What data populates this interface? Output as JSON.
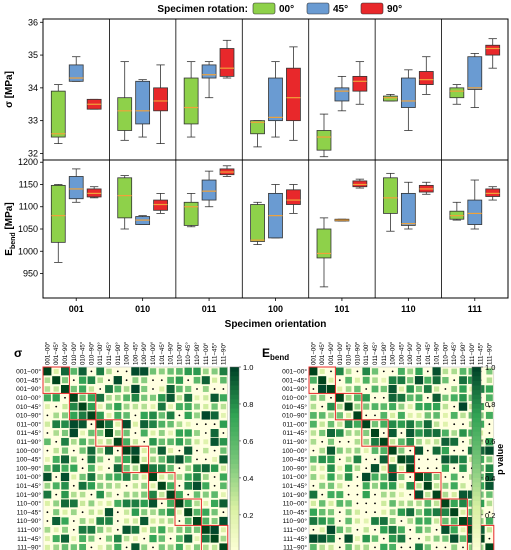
{
  "legend": {
    "title": "Specimen rotation:",
    "items": [
      {
        "label": "00°",
        "color": "#8ed14a"
      },
      {
        "label": "45°",
        "color": "#6a9bd2"
      },
      {
        "label": "90°",
        "color": "#e8282b"
      }
    ]
  },
  "colors": {
    "median": "#f0a23a",
    "box_stroke": "#333333",
    "axis": "#000000",
    "grid": "#dddddd",
    "significance_box": "#e8282b"
  },
  "chart_data": [
    {
      "type": "box",
      "ylabel": "σ [MPa]",
      "ylim": [
        31.8,
        36.1
      ],
      "yticks": [
        32,
        33,
        34,
        35,
        36
      ],
      "categories": [
        "001",
        "010",
        "011",
        "100",
        "101",
        "110",
        "111"
      ],
      "series": [
        {
          "name": "00°",
          "stats": [
            {
              "min": 32.3,
              "q1": 32.5,
              "median": 32.6,
              "q3": 33.9,
              "max": 34.1
            },
            {
              "min": 32.4,
              "q1": 32.7,
              "median": 33.3,
              "q3": 33.7,
              "max": 34.8
            },
            {
              "min": 32.5,
              "q1": 32.9,
              "median": 33.4,
              "q3": 34.3,
              "max": 34.8
            },
            {
              "min": 32.2,
              "q1": 32.6,
              "median": 32.95,
              "q3": 33.0,
              "max": 33.0
            },
            {
              "min": 31.9,
              "q1": 32.1,
              "median": 32.5,
              "q3": 32.7,
              "max": 33.2
            },
            {
              "min": 33.6,
              "q1": 33.6,
              "median": 33.7,
              "q3": 33.75,
              "max": 33.8
            },
            {
              "min": 33.5,
              "q1": 33.7,
              "median": 33.9,
              "q3": 34.0,
              "max": 34.1
            }
          ]
        },
        {
          "name": "45°",
          "stats": [
            {
              "min": 34.2,
              "q1": 34.2,
              "median": 34.3,
              "q3": 34.7,
              "max": 34.95
            },
            {
              "min": 32.5,
              "q1": 32.9,
              "median": 33.3,
              "q3": 34.2,
              "max": 34.25
            },
            {
              "min": 33.7,
              "q1": 34.3,
              "median": 34.4,
              "q3": 34.7,
              "max": 34.8
            },
            {
              "min": 32.5,
              "q1": 33.0,
              "median": 33.1,
              "q3": 34.3,
              "max": 34.8
            },
            {
              "min": 33.3,
              "q1": 33.6,
              "median": 33.9,
              "q3": 34.0,
              "max": 34.35
            },
            {
              "min": 32.7,
              "q1": 33.4,
              "median": 33.6,
              "q3": 34.3,
              "max": 34.55
            },
            {
              "min": 33.4,
              "q1": 33.95,
              "median": 34.0,
              "q3": 34.95,
              "max": 35.05
            }
          ]
        },
        {
          "name": "90°",
          "stats": [
            {
              "min": 33.35,
              "q1": 33.35,
              "median": 33.5,
              "q3": 33.65,
              "max": 33.65
            },
            {
              "min": 32.3,
              "q1": 33.3,
              "median": 33.6,
              "q3": 34.0,
              "max": 34.7
            },
            {
              "min": 34.3,
              "q1": 34.35,
              "median": 34.6,
              "q3": 35.2,
              "max": 35.45
            },
            {
              "min": 32.4,
              "q1": 33.0,
              "median": 33.7,
              "q3": 34.6,
              "max": 35.25
            },
            {
              "min": 33.5,
              "q1": 33.9,
              "median": 34.2,
              "q3": 34.35,
              "max": 34.8
            },
            {
              "min": 33.8,
              "q1": 34.1,
              "median": 34.25,
              "q3": 34.5,
              "max": 34.95
            },
            {
              "min": 34.6,
              "q1": 35.0,
              "median": 35.2,
              "q3": 35.3,
              "max": 35.5
            }
          ]
        }
      ]
    },
    {
      "type": "box",
      "ylabel": "E",
      "ylabel_sub": "bend",
      "ylabel_unit": " [MPa]",
      "xlabel": "Specimen orientation",
      "ylim": [
        895,
        1205
      ],
      "yticks": [
        950,
        1000,
        1050,
        1100,
        1150,
        1200
      ],
      "categories": [
        "001",
        "010",
        "011",
        "100",
        "101",
        "110",
        "111"
      ],
      "series": [
        {
          "name": "00°",
          "stats": [
            {
              "min": 975,
              "q1": 1020,
              "median": 1080,
              "q3": 1148,
              "max": 1150
            },
            {
              "min": 1050,
              "q1": 1075,
              "median": 1125,
              "q3": 1165,
              "max": 1170
            },
            {
              "min": 1055,
              "q1": 1058,
              "median": 1100,
              "q3": 1110,
              "max": 1130
            },
            {
              "min": 1015,
              "q1": 1022,
              "median": 1025,
              "q3": 1105,
              "max": 1110
            },
            {
              "min": 920,
              "q1": 985,
              "median": 995,
              "q3": 1050,
              "max": 1075
            },
            {
              "min": 1045,
              "q1": 1085,
              "median": 1120,
              "q3": 1165,
              "max": 1175
            },
            {
              "min": 1070,
              "q1": 1072,
              "median": 1080,
              "q3": 1090,
              "max": 1110
            }
          ]
        },
        {
          "name": "45°",
          "stats": [
            {
              "min": 1110,
              "q1": 1118,
              "median": 1140,
              "q3": 1168,
              "max": 1185
            },
            {
              "min": 1060,
              "q1": 1060,
              "median": 1070,
              "q3": 1078,
              "max": 1080
            },
            {
              "min": 1100,
              "q1": 1115,
              "median": 1135,
              "q3": 1160,
              "max": 1180
            },
            {
              "min": 1030,
              "q1": 1030,
              "median": 1080,
              "q3": 1130,
              "max": 1150
            },
            {
              "min": 1068,
              "q1": 1068,
              "median": 1070,
              "q3": 1072,
              "max": 1072
            },
            {
              "min": 1050,
              "q1": 1058,
              "median": 1062,
              "q3": 1130,
              "max": 1155
            },
            {
              "min": 1050,
              "q1": 1060,
              "median": 1085,
              "q3": 1115,
              "max": 1160
            }
          ]
        },
        {
          "name": "90°",
          "stats": [
            {
              "min": 1120,
              "q1": 1122,
              "median": 1130,
              "q3": 1140,
              "max": 1145
            },
            {
              "min": 1085,
              "q1": 1092,
              "median": 1105,
              "q3": 1115,
              "max": 1130
            },
            {
              "min": 1168,
              "q1": 1172,
              "median": 1178,
              "q3": 1185,
              "max": 1192
            },
            {
              "min": 1085,
              "q1": 1105,
              "median": 1115,
              "q3": 1138,
              "max": 1150
            },
            {
              "min": 1142,
              "q1": 1145,
              "median": 1150,
              "q3": 1158,
              "max": 1162
            },
            {
              "min": 1128,
              "q1": 1133,
              "median": 1140,
              "q3": 1148,
              "max": 1155
            },
            {
              "min": 1115,
              "q1": 1123,
              "median": 1130,
              "q3": 1140,
              "max": 1145
            }
          ]
        }
      ]
    },
    {
      "type": "heatmap",
      "title": "σ",
      "labels": [
        "001−00°",
        "001−45°",
        "001−90°",
        "010−00°",
        "010−45°",
        "010−90°",
        "011−00°",
        "011−45°",
        "011−90°",
        "100−00°",
        "100−45°",
        "100−90°",
        "101−00°",
        "101−45°",
        "101−90°",
        "110−00°",
        "110−45°",
        "110−90°",
        "111−00°",
        "111−45°",
        "111−90°"
      ],
      "seed": 7,
      "colorbar": {
        "label": "",
        "ticks": [
          "1.0",
          "0.8",
          "0.6",
          "0.4",
          "0.2"
        ]
      }
    },
    {
      "type": "heatmap",
      "title": "E",
      "title_sub": "bend",
      "labels": [
        "001−00°",
        "001−45°",
        "001−90°",
        "010−00°",
        "010−45°",
        "010−90°",
        "011−00°",
        "011−45°",
        "011−90°",
        "100−00°",
        "100−45°",
        "100−90°",
        "101−00°",
        "101−45°",
        "101−90°",
        "110−00°",
        "110−45°",
        "110−90°",
        "111−00°",
        "111−45°",
        "111−90°"
      ],
      "seed": 19,
      "colorbar": {
        "label": "p value",
        "ticks": [
          "1.0",
          "0.8",
          "0.6",
          "0.4",
          "0.2"
        ]
      }
    }
  ]
}
